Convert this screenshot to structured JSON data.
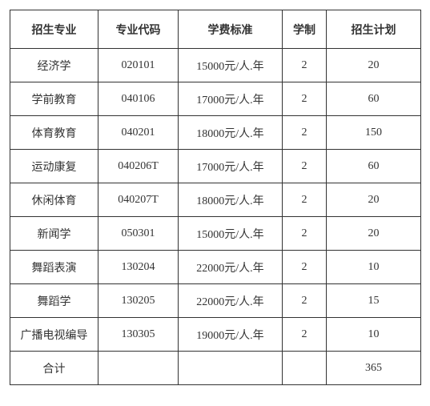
{
  "table": {
    "columns": [
      {
        "key": "major",
        "label": "招生专业"
      },
      {
        "key": "code",
        "label": "专业代码"
      },
      {
        "key": "fee",
        "label": "学费标准"
      },
      {
        "key": "years",
        "label": "学制"
      },
      {
        "key": "plan",
        "label": "招生计划"
      }
    ],
    "rows": [
      {
        "major": "经济学",
        "code": "020101",
        "fee": "15000元/人.年",
        "years": "2",
        "plan": "20"
      },
      {
        "major": "学前教育",
        "code": "040106",
        "fee": "17000元/人.年",
        "years": "2",
        "plan": "60"
      },
      {
        "major": "体育教育",
        "code": "040201",
        "fee": "18000元/人.年",
        "years": "2",
        "plan": "150"
      },
      {
        "major": "运动康复",
        "code": "040206T",
        "fee": "17000元/人.年",
        "years": "2",
        "plan": "60"
      },
      {
        "major": "休闲体育",
        "code": "040207T",
        "fee": "18000元/人.年",
        "years": "2",
        "plan": "20"
      },
      {
        "major": "新闻学",
        "code": "050301",
        "fee": "15000元/人.年",
        "years": "2",
        "plan": "20"
      },
      {
        "major": "舞蹈表演",
        "code": "130204",
        "fee": "22000元/人.年",
        "years": "2",
        "plan": "10"
      },
      {
        "major": "舞蹈学",
        "code": "130205",
        "fee": "22000元/人.年",
        "years": "2",
        "plan": "15"
      },
      {
        "major": "广播电视编导",
        "code": "130305",
        "fee": "19000元/人.年",
        "years": "2",
        "plan": "10"
      }
    ],
    "footer": {
      "label": "合计",
      "total_plan": "365"
    }
  }
}
